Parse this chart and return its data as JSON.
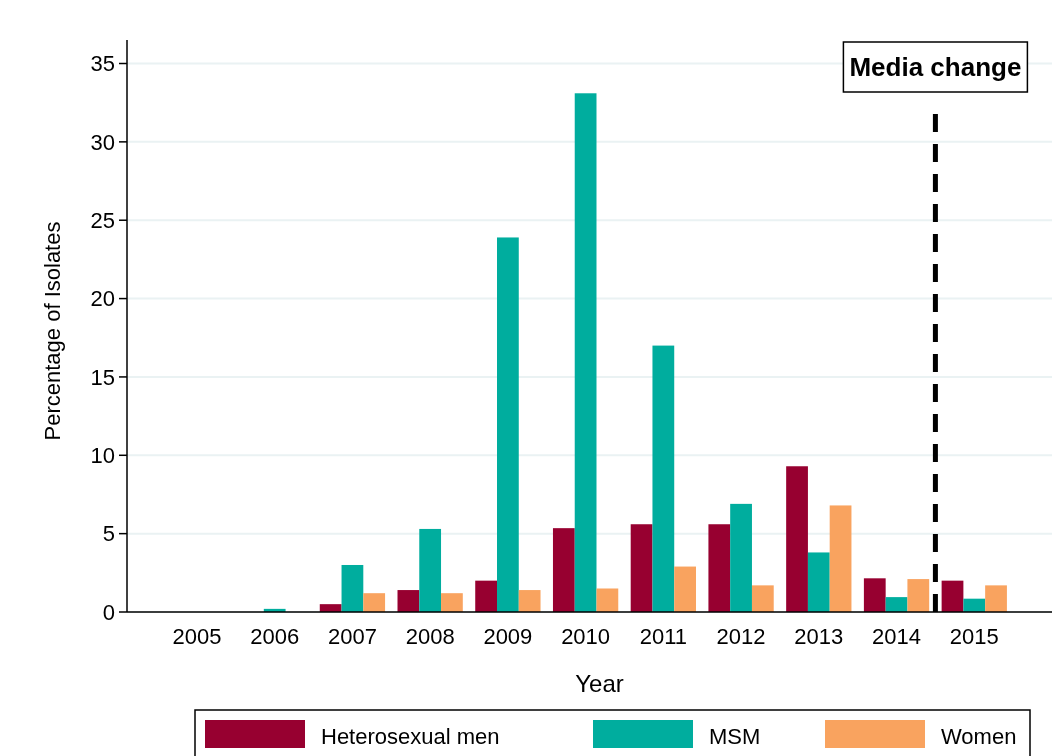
{
  "chart_data": {
    "type": "bar",
    "xlabel": "Year",
    "ylabel": "Percentage of Isolates",
    "x": [
      2005,
      2006,
      2007,
      2008,
      2009,
      2010,
      2011,
      2012,
      2013,
      2014,
      2015
    ],
    "xlim": [
      2004.1,
      2016
    ],
    "xticks": [
      2005,
      2006,
      2007,
      2008,
      2009,
      2010,
      2011,
      2012,
      2013,
      2014,
      2015
    ],
    "ylim": [
      0,
      36.5
    ],
    "yticks": [
      0,
      5,
      10,
      15,
      20,
      25,
      30,
      35
    ],
    "series": [
      {
        "name": "Heterosexual men",
        "color": "#970030",
        "values": [
          0,
          0,
          0.5,
          1.4,
          2.0,
          5.35,
          5.6,
          5.6,
          9.3,
          2.15,
          2.0
        ]
      },
      {
        "name": "MSM",
        "color": "#00ad9e",
        "values": [
          0,
          0.2,
          3.0,
          5.3,
          23.9,
          33.1,
          17.0,
          6.9,
          3.8,
          0.95,
          0.85
        ]
      },
      {
        "name": "Women",
        "color": "#f9a35f",
        "values": [
          0,
          0,
          1.2,
          1.2,
          1.4,
          1.5,
          2.9,
          1.7,
          6.8,
          2.1,
          1.7
        ]
      }
    ],
    "ref_lines": [
      {
        "axis": "x",
        "value": 2014.5,
        "label": "Media change",
        "line_style": "dashed",
        "color": "#000000"
      }
    ],
    "grid": "y",
    "legend": "bottom"
  }
}
